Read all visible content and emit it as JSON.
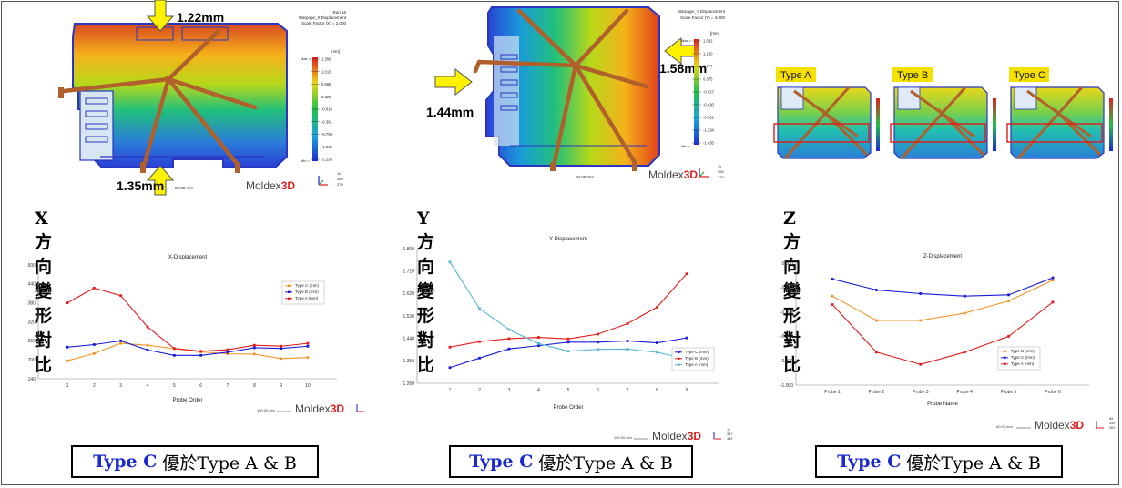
{
  "panels": [
    {
      "section_title": "X方向變形對比",
      "mold": {
        "header": [
          "Run 16",
          "Warpage_X Displacement",
          "Scale Factor (X) = 3.000"
        ],
        "unit": "[mm]",
        "scale_values": [
          "1.356",
          "1.013",
          "0.669",
          "0.326",
          "-0.018",
          "-0.361",
          "-0.705",
          "-1.048",
          "-1.226"
        ],
        "scale_max_label": "Max =",
        "scale_min_label": "Min =",
        "callouts": [
          "1.22mm",
          "1.35mm"
        ],
        "scale_bar": "80.00 mm",
        "axis_numbers": [
          "11",
          "359",
          "270"
        ]
      },
      "chart": {
        "title": "X-Displacement",
        "xlabel": "Probe Order",
        "yticks": [
          "1.500",
          "1.440",
          "1.380",
          "1.320",
          "1.260",
          "1.200",
          "1.140"
        ],
        "scale_bar": "100.00 mm",
        "axis_numbers": [
          "359",
          "4",
          "89"
        ]
      },
      "conclusion": {
        "highlight": "Type C",
        "text": "優於Type A & B"
      }
    },
    {
      "section_title": "Y方向變形對比",
      "mold": {
        "header": [
          "Warpage_Y Displacement",
          "Scale Factor (Y) = 3.000"
        ],
        "unit": "[mm]",
        "scale_values": [
          "1.582",
          "1.180",
          "0.777",
          "0.375",
          "-0.027",
          "-0.430",
          "-0.832",
          "-1.234",
          "-1.435"
        ],
        "scale_max_label": "Max =",
        "scale_min_label": "Min =",
        "callouts": [
          "1.58mm",
          "1.44mm"
        ],
        "scale_bar": "50.00 mm",
        "axis_numbers": [
          "11",
          "359",
          "270"
        ]
      },
      "chart": {
        "title": "Y-Displacement",
        "xlabel": "Probe Order",
        "yticks": [
          "1.800",
          "1.710",
          "1.620",
          "1.530",
          "1.440",
          "1.350",
          "1.260"
        ],
        "scale_bar": "100.00 mm",
        "axis_numbers": [
          "11",
          "357",
          "359"
        ]
      },
      "conclusion": {
        "highlight": "Type C",
        "text": "優於Type A & B"
      }
    },
    {
      "section_title": "Z方向變形對比",
      "mold": {
        "types": [
          "Type A",
          "Type B",
          "Type C"
        ]
      },
      "chart": {
        "title": "Z-Displacement",
        "xlabel": "Probe Name",
        "yticks": [
          "0.000",
          "-0.200",
          "-0.400",
          "-0.600",
          "-0.800",
          "-1.000"
        ],
        "scale_bar": "60.00 mm",
        "axis_numbers": [
          "89",
          "359",
          "361"
        ]
      },
      "conclusion": {
        "highlight": "Type C",
        "text": "優於Type A & B"
      }
    }
  ],
  "brand": {
    "prefix": "Moldex",
    "suffix": "3D"
  },
  "chart_data": [
    {
      "type": "line",
      "title": "X-Displacement",
      "xlabel": "Probe Order",
      "ylabel": "",
      "categories": [
        "1",
        "2",
        "3",
        "4",
        "5",
        "6",
        "7",
        "8",
        "9",
        "10"
      ],
      "ylim": [
        1.14,
        1.5
      ],
      "series": [
        {
          "name": "Type C (mm)",
          "color": "#f0962a",
          "values": [
            1.197,
            1.22,
            1.252,
            1.246,
            1.235,
            1.225,
            1.219,
            1.218,
            1.204,
            1.207
          ]
        },
        {
          "name": "Type B (mm)",
          "color": "#1a1ad6",
          "values": [
            1.24,
            1.248,
            1.26,
            1.231,
            1.214,
            1.214,
            1.224,
            1.238,
            1.236,
            1.243
          ]
        },
        {
          "name": "Type A (mm)",
          "color": "#e41a1a",
          "values": [
            1.38,
            1.427,
            1.403,
            1.304,
            1.236,
            1.227,
            1.232,
            1.246,
            1.243,
            1.252
          ]
        }
      ]
    },
    {
      "type": "line",
      "title": "Y-Displacement",
      "xlabel": "Probe Order",
      "ylabel": "",
      "categories": [
        "1",
        "2",
        "3",
        "4",
        "5",
        "6",
        "7",
        "8",
        "9"
      ],
      "ylim": [
        1.26,
        1.8
      ],
      "series": [
        {
          "name": "Type C (mm)",
          "color": "#1a1ad6",
          "values": [
            1.323,
            1.361,
            1.398,
            1.411,
            1.425,
            1.425,
            1.43,
            1.422,
            1.442
          ]
        },
        {
          "name": "Type B (mm)",
          "color": "#e41a1a",
          "values": [
            1.405,
            1.427,
            1.439,
            1.444,
            1.438,
            1.457,
            1.499,
            1.565,
            1.699
          ]
        },
        {
          "name": "Type A (mm)",
          "color": "#55b4d8",
          "values": [
            1.746,
            1.56,
            1.475,
            1.419,
            1.389,
            1.396,
            1.397,
            1.384,
            1.358
          ]
        }
      ]
    },
    {
      "type": "line",
      "title": "Z-Displacement",
      "xlabel": "Probe Name",
      "ylabel": "",
      "categories": [
        "Probe 1",
        "Probe 2",
        "Probe 3",
        "Probe 4",
        "Probe 5",
        "Probe 6"
      ],
      "ylim": [
        -1.0,
        0.0
      ],
      "series": [
        {
          "name": "Type B (mm)",
          "color": "#f0962a",
          "values": [
            -0.27,
            -0.47,
            -0.47,
            -0.41,
            -0.31,
            -0.14
          ]
        },
        {
          "name": "Type C (mm)",
          "color": "#1a1ad6",
          "values": [
            -0.13,
            -0.22,
            -0.25,
            -0.27,
            -0.26,
            -0.12
          ]
        },
        {
          "name": "Type A (mm)",
          "color": "#e41a1a",
          "values": [
            -0.34,
            -0.73,
            -0.83,
            -0.73,
            -0.6,
            -0.32
          ]
        }
      ]
    }
  ]
}
